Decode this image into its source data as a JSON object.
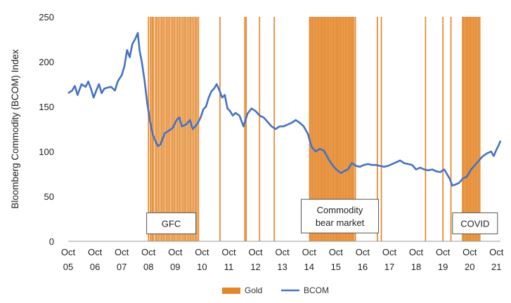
{
  "chart_data": {
    "type": "line",
    "ylabel": "Bloomberg Commodity (BCOM) Index",
    "xlabel": "",
    "ylim": [
      0,
      250
    ],
    "yticks": [
      0,
      50,
      100,
      150,
      200,
      250
    ],
    "x_ticks": [
      {
        "top": "Oct",
        "bottom": "05",
        "x": 2005.75
      },
      {
        "top": "Oct",
        "bottom": "06",
        "x": 2006.75
      },
      {
        "top": "Oct",
        "bottom": "07",
        "x": 2007.75
      },
      {
        "top": "Oct",
        "bottom": "08",
        "x": 2008.75
      },
      {
        "top": "Oct",
        "bottom": "09",
        "x": 2009.75
      },
      {
        "top": "Oct",
        "bottom": "10",
        "x": 2010.75
      },
      {
        "top": "Oct",
        "bottom": "11",
        "x": 2011.75
      },
      {
        "top": "Oct",
        "bottom": "12",
        "x": 2012.75
      },
      {
        "top": "Oct",
        "bottom": "13",
        "x": 2013.75
      },
      {
        "top": "Oct",
        "bottom": "14",
        "x": 2014.75
      },
      {
        "top": "Oct",
        "bottom": "15",
        "x": 2015.75
      },
      {
        "top": "Oct",
        "bottom": "16",
        "x": 2016.75
      },
      {
        "top": "Oct",
        "bottom": "17",
        "x": 2017.75
      },
      {
        "top": "Oct",
        "bottom": "18",
        "x": 2018.75
      },
      {
        "top": "Oct",
        "bottom": "19",
        "x": 2019.75
      },
      {
        "top": "Oct",
        "bottom": "20",
        "x": 2020.75
      },
      {
        "top": "Oct",
        "bottom": "21",
        "x": 2021.75
      }
    ],
    "xlim": [
      2005.75,
      2021.9
    ],
    "series": [
      {
        "name": "BCOM",
        "color": "#4472C4",
        "points": [
          [
            2005.75,
            165
          ],
          [
            2005.9,
            168
          ],
          [
            2006.0,
            173
          ],
          [
            2006.1,
            163
          ],
          [
            2006.25,
            175
          ],
          [
            2006.4,
            172
          ],
          [
            2006.5,
            178
          ],
          [
            2006.6,
            170
          ],
          [
            2006.7,
            160
          ],
          [
            2006.8,
            168
          ],
          [
            2006.9,
            175
          ],
          [
            2007.0,
            165
          ],
          [
            2007.1,
            170
          ],
          [
            2007.2,
            171
          ],
          [
            2007.35,
            172
          ],
          [
            2007.5,
            168
          ],
          [
            2007.6,
            178
          ],
          [
            2007.75,
            185
          ],
          [
            2007.85,
            195
          ],
          [
            2007.95,
            213
          ],
          [
            2008.05,
            205
          ],
          [
            2008.15,
            220
          ],
          [
            2008.25,
            225
          ],
          [
            2008.35,
            232
          ],
          [
            2008.42,
            212
          ],
          [
            2008.5,
            200
          ],
          [
            2008.6,
            180
          ],
          [
            2008.7,
            155
          ],
          [
            2008.8,
            135
          ],
          [
            2008.9,
            120
          ],
          [
            2009.0,
            112
          ],
          [
            2009.1,
            106
          ],
          [
            2009.2,
            108
          ],
          [
            2009.35,
            120
          ],
          [
            2009.5,
            123
          ],
          [
            2009.65,
            126
          ],
          [
            2009.8,
            135
          ],
          [
            2009.9,
            138
          ],
          [
            2010.0,
            128
          ],
          [
            2010.15,
            130
          ],
          [
            2010.3,
            135
          ],
          [
            2010.4,
            125
          ],
          [
            2010.5,
            128
          ],
          [
            2010.6,
            132
          ],
          [
            2010.7,
            138
          ],
          [
            2010.8,
            147
          ],
          [
            2010.9,
            150
          ],
          [
            2011.0,
            160
          ],
          [
            2011.1,
            167
          ],
          [
            2011.2,
            170
          ],
          [
            2011.3,
            175
          ],
          [
            2011.4,
            168
          ],
          [
            2011.5,
            160
          ],
          [
            2011.6,
            163
          ],
          [
            2011.7,
            148
          ],
          [
            2011.8,
            145
          ],
          [
            2011.9,
            140
          ],
          [
            2012.0,
            143
          ],
          [
            2012.15,
            140
          ],
          [
            2012.3,
            128
          ],
          [
            2012.45,
            142
          ],
          [
            2012.6,
            148
          ],
          [
            2012.75,
            145
          ],
          [
            2012.9,
            140
          ],
          [
            2013.05,
            138
          ],
          [
            2013.2,
            133
          ],
          [
            2013.35,
            128
          ],
          [
            2013.5,
            125
          ],
          [
            2013.65,
            128
          ],
          [
            2013.8,
            128
          ],
          [
            2013.95,
            130
          ],
          [
            2014.1,
            132
          ],
          [
            2014.25,
            135
          ],
          [
            2014.4,
            132
          ],
          [
            2014.55,
            128
          ],
          [
            2014.7,
            120
          ],
          [
            2014.85,
            105
          ],
          [
            2015.0,
            100
          ],
          [
            2015.15,
            103
          ],
          [
            2015.3,
            101
          ],
          [
            2015.45,
            93
          ],
          [
            2015.55,
            88
          ],
          [
            2015.7,
            82
          ],
          [
            2015.85,
            78
          ],
          [
            2015.95,
            76
          ],
          [
            2016.05,
            78
          ],
          [
            2016.2,
            80
          ],
          [
            2016.35,
            87
          ],
          [
            2016.5,
            84
          ],
          [
            2016.65,
            83
          ],
          [
            2016.8,
            85
          ],
          [
            2016.95,
            86
          ],
          [
            2017.1,
            85
          ],
          [
            2017.25,
            85
          ],
          [
            2017.4,
            84
          ],
          [
            2017.55,
            83
          ],
          [
            2017.7,
            84
          ],
          [
            2017.85,
            86
          ],
          [
            2018.0,
            88
          ],
          [
            2018.15,
            90
          ],
          [
            2018.3,
            87
          ],
          [
            2018.45,
            86
          ],
          [
            2018.6,
            85
          ],
          [
            2018.75,
            80
          ],
          [
            2018.9,
            82
          ],
          [
            2019.05,
            80
          ],
          [
            2019.2,
            79
          ],
          [
            2019.35,
            80
          ],
          [
            2019.5,
            78
          ],
          [
            2019.65,
            77
          ],
          [
            2019.8,
            80
          ],
          [
            2019.9,
            75
          ],
          [
            2020.0,
            70
          ],
          [
            2020.1,
            62
          ],
          [
            2020.2,
            63
          ],
          [
            2020.35,
            65
          ],
          [
            2020.5,
            70
          ],
          [
            2020.65,
            72
          ],
          [
            2020.8,
            80
          ],
          [
            2020.95,
            85
          ],
          [
            2021.1,
            90
          ],
          [
            2021.25,
            95
          ],
          [
            2021.4,
            98
          ],
          [
            2021.55,
            100
          ],
          [
            2021.65,
            95
          ],
          [
            2021.75,
            102
          ],
          [
            2021.85,
            108
          ],
          [
            2021.9,
            112
          ]
        ]
      },
      {
        "name": "Gold",
        "color": "#E4872A",
        "type": "event_bars",
        "dates": [
          2008.75,
          2008.82,
          2008.88,
          2008.93,
          2009.0,
          2009.06,
          2009.12,
          2009.18,
          2009.24,
          2009.3,
          2009.36,
          2009.42,
          2009.48,
          2009.54,
          2009.6,
          2009.66,
          2009.72,
          2009.78,
          2009.84,
          2009.9,
          2009.96,
          2010.02,
          2010.08,
          2010.14,
          2010.2,
          2010.26,
          2010.32,
          2010.38,
          2010.44,
          2010.5,
          2010.56,
          2010.62,
          2011.42,
          2012.35,
          2012.4,
          2012.9,
          2013.45,
          2014.77,
          2014.82,
          2014.87,
          2014.92,
          2014.97,
          2015.02,
          2015.07,
          2015.12,
          2015.17,
          2015.22,
          2015.27,
          2015.32,
          2015.37,
          2015.42,
          2015.47,
          2015.52,
          2015.57,
          2015.62,
          2015.67,
          2015.72,
          2015.77,
          2015.82,
          2015.87,
          2015.92,
          2015.97,
          2016.02,
          2016.07,
          2016.12,
          2016.17,
          2016.22,
          2016.27,
          2016.32,
          2016.37,
          2016.42,
          2016.48,
          2017.3,
          2017.45,
          2019.1,
          2019.75,
          2020.05,
          2020.48,
          2020.53,
          2020.58,
          2020.63,
          2020.68,
          2020.73,
          2020.78,
          2020.83,
          2020.88,
          2020.93,
          2020.98,
          2021.03,
          2021.08,
          2021.13
        ]
      }
    ],
    "annotations": [
      {
        "text": "GFC",
        "x": 2009.6,
        "y": 20
      },
      {
        "text_lines": [
          "Commodity",
          "bear market"
        ],
        "x": 2015.9,
        "y": 28
      },
      {
        "text": "COVID",
        "x": 2020.95,
        "y": 20
      }
    ],
    "legend": {
      "placement": "bottom",
      "items": [
        {
          "label": "Gold",
          "swatch": "bar",
          "color": "#E4872A"
        },
        {
          "label": "BCOM",
          "swatch": "line",
          "color": "#4472C4"
        }
      ]
    },
    "grid": false
  }
}
